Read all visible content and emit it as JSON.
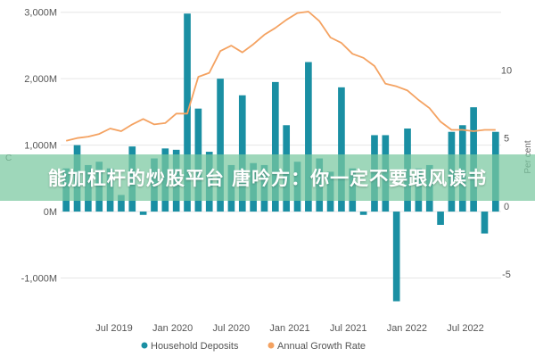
{
  "overlay": {
    "headline": "能加杠杆的炒股平台 唐吟方：你一定不要跟风读书"
  },
  "colors": {
    "deposits": "#1a8fa3",
    "growth": "#f4a261",
    "grid": "#e6e6e6",
    "banner": "#78c8a0"
  },
  "chart_data": {
    "type": "bar+line",
    "x_tick_labels": [
      "Jul 2019",
      "Jan 2020",
      "Jul 2020",
      "Jan 2021",
      "Jul 2021",
      "Jan 2022",
      "Jul 2022"
    ],
    "y_left": {
      "ticks": [
        3000,
        2000,
        1000,
        0,
        -1000
      ],
      "tick_labels": [
        "3,000M",
        "2,000M",
        "1,000M",
        "0M",
        "-1,000M"
      ],
      "range": [
        -1450,
        3050
      ],
      "label": "C"
    },
    "y_right": {
      "ticks": [
        10,
        5,
        0,
        -5
      ],
      "tick_labels": [
        "10",
        "5",
        "0",
        "-5"
      ],
      "range": [
        -7.5,
        14.5
      ],
      "label": "Per cent"
    },
    "legend_position": "bottom",
    "grid": true,
    "series": [
      {
        "name": "Household Deposits",
        "type": "bar",
        "axis": "left",
        "values": [
          650,
          1000,
          700,
          750,
          650,
          250,
          980,
          -50,
          800,
          950,
          930,
          2980,
          1550,
          900,
          2000,
          700,
          1750,
          730,
          700,
          1950,
          1300,
          750,
          2250,
          800,
          600,
          1870,
          650,
          -50,
          1150,
          1150,
          -1350,
          1250,
          650,
          700,
          -200,
          1200,
          1300,
          1570,
          -330,
          1200
        ]
      },
      {
        "name": "Annual Growth Rate",
        "type": "line",
        "axis": "right",
        "values": [
          4.8,
          5.0,
          5.1,
          5.3,
          5.7,
          5.5,
          6.0,
          6.4,
          6.0,
          6.1,
          6.8,
          6.8,
          9.5,
          9.8,
          11.4,
          11.8,
          11.3,
          11.9,
          12.6,
          13.1,
          13.7,
          14.2,
          14.3,
          13.6,
          12.4,
          12.0,
          11.2,
          10.9,
          10.3,
          9.0,
          8.8,
          8.5,
          7.8,
          7.2,
          6.2,
          5.6,
          5.6,
          5.5,
          5.6,
          5.6
        ]
      }
    ]
  }
}
